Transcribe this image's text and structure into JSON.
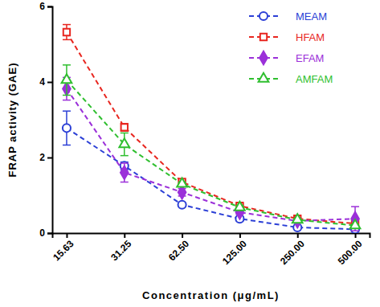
{
  "chart_data": {
    "type": "line",
    "x_label": "Concentration (μg/mL)",
    "y_label": "FRAP activity (GAE)",
    "categories": [
      "15.63",
      "31.25",
      "62.50",
      "125.00",
      "250.00",
      "500.00"
    ],
    "ylim": [
      0,
      6
    ],
    "yticks": [
      0,
      2,
      4,
      6
    ],
    "grid": false,
    "legend": "upper right",
    "series": [
      {
        "name": "MEAM",
        "color": "#2b3fd6",
        "marker": "open-circle",
        "line_style": "dashed",
        "values": [
          2.78,
          1.78,
          0.75,
          0.38,
          0.15,
          0.1
        ],
        "errors": [
          0.45,
          0.1,
          0.05,
          0.05,
          0.03,
          0.03
        ]
      },
      {
        "name": "HFAM",
        "color": "#e8261f",
        "marker": "open-square",
        "line_style": "dashed",
        "values": [
          5.32,
          2.8,
          1.35,
          0.72,
          0.38,
          0.25
        ],
        "errors": [
          0.2,
          0.1,
          0.05,
          0.05,
          0.03,
          0.03
        ]
      },
      {
        "name": "EFAM",
        "color": "#9b30d9",
        "marker": "diamond",
        "line_style": "dashed",
        "values": [
          3.82,
          1.6,
          1.08,
          0.55,
          0.32,
          0.38
        ],
        "errors": [
          0.3,
          0.25,
          0.1,
          0.05,
          0.03,
          0.32
        ]
      },
      {
        "name": "AMFAM",
        "color": "#2fbf2f",
        "marker": "open-triangle",
        "line_style": "dashed",
        "values": [
          4.05,
          2.35,
          1.3,
          0.68,
          0.35,
          0.2
        ],
        "errors": [
          0.4,
          0.3,
          0.05,
          0.05,
          0.03,
          0.03
        ]
      }
    ]
  }
}
